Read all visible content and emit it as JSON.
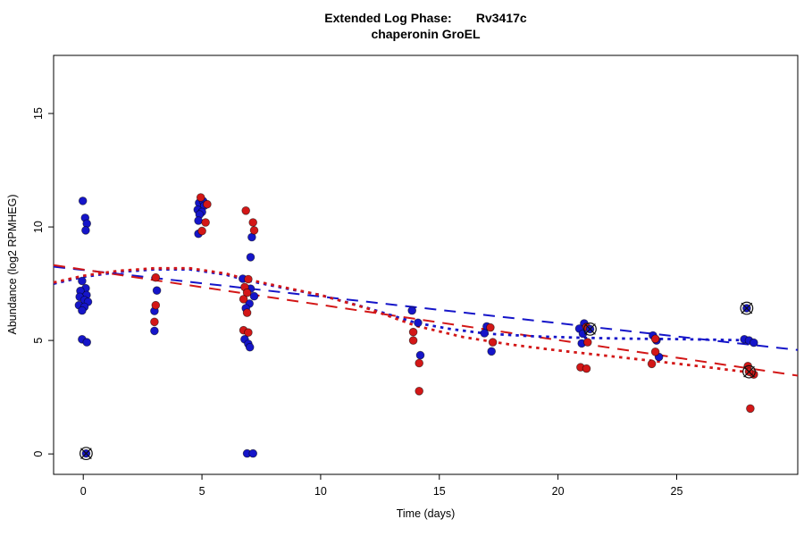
{
  "title": {
    "line1": "Extended Log Phase:       Rv3417c",
    "line2": "chaperonin GroEL"
  },
  "colors": {
    "blue": "#1515c9",
    "red": "#d31717",
    "axis": "#000000",
    "marker_outline": "#111111"
  },
  "chart_data": {
    "type": "scatter",
    "title": "Extended Log Phase: Rv3417c — chaperonin GroEL",
    "xlabel": "Time (days)",
    "ylabel": "Abundance (log2 RPMHEG)",
    "xlim": [
      -1.25,
      30.1
    ],
    "ylim": [
      -0.9,
      17.56
    ],
    "x_ticks": [
      0,
      5,
      10,
      15,
      20,
      25
    ],
    "y_ticks": [
      0,
      5,
      10,
      15
    ],
    "grid": false,
    "legend": "none",
    "series": [
      {
        "name": "blue-condition-points",
        "color_key": "blue",
        "points": [
          [
            -0.02,
            11.15
          ],
          [
            0.08,
            10.4
          ],
          [
            0.15,
            10.15
          ],
          [
            0.1,
            9.85
          ],
          [
            -0.05,
            7.62
          ],
          [
            0.1,
            7.3
          ],
          [
            -0.12,
            7.18
          ],
          [
            0.14,
            7.0
          ],
          [
            -0.15,
            6.92
          ],
          [
            0.05,
            6.78
          ],
          [
            0.2,
            6.7
          ],
          [
            -0.18,
            6.55
          ],
          [
            0.05,
            6.48
          ],
          [
            -0.05,
            6.32
          ],
          [
            -0.05,
            5.05
          ],
          [
            0.15,
            4.92
          ],
          [
            3.1,
            7.2
          ],
          [
            3.0,
            6.3
          ],
          [
            3.0,
            5.42
          ],
          [
            4.88,
            11.06
          ],
          [
            5.05,
            11.14
          ],
          [
            5.1,
            10.94
          ],
          [
            4.82,
            10.76
          ],
          [
            5.0,
            10.66
          ],
          [
            4.9,
            10.55
          ],
          [
            4.85,
            10.28
          ],
          [
            4.85,
            9.7
          ],
          [
            7.1,
            9.55
          ],
          [
            7.05,
            8.67
          ],
          [
            6.72,
            7.72
          ],
          [
            7.05,
            7.28
          ],
          [
            7.2,
            6.95
          ],
          [
            7.0,
            6.62
          ],
          [
            6.85,
            6.42
          ],
          [
            6.8,
            5.05
          ],
          [
            6.95,
            4.85
          ],
          [
            7.02,
            4.7
          ],
          [
            6.9,
            0.02
          ],
          [
            7.15,
            0.02
          ],
          [
            13.85,
            6.32
          ],
          [
            14.1,
            5.78
          ],
          [
            14.2,
            4.35
          ],
          [
            17.0,
            5.62
          ],
          [
            16.9,
            5.32
          ],
          [
            17.2,
            4.52
          ],
          [
            21.1,
            5.75
          ],
          [
            20.9,
            5.52
          ],
          [
            21.05,
            5.3
          ],
          [
            21.0,
            4.87
          ],
          [
            24.0,
            5.22
          ],
          [
            24.15,
            5.0
          ],
          [
            24.25,
            4.27
          ],
          [
            27.85,
            5.05
          ],
          [
            28.05,
            5.0
          ],
          [
            28.25,
            4.9
          ]
        ]
      },
      {
        "name": "red-condition-points",
        "color_key": "red",
        "points": [
          [
            3.05,
            7.77
          ],
          [
            3.05,
            6.55
          ],
          [
            3.0,
            5.82
          ],
          [
            4.95,
            11.3
          ],
          [
            5.22,
            11.0
          ],
          [
            5.15,
            10.2
          ],
          [
            5.0,
            9.82
          ],
          [
            6.85,
            10.72
          ],
          [
            7.15,
            10.2
          ],
          [
            7.2,
            9.85
          ],
          [
            6.95,
            7.7
          ],
          [
            6.8,
            7.35
          ],
          [
            6.9,
            7.1
          ],
          [
            6.75,
            6.82
          ],
          [
            6.9,
            6.22
          ],
          [
            6.75,
            5.45
          ],
          [
            6.95,
            5.35
          ],
          [
            13.9,
            5.37
          ],
          [
            13.9,
            5.0
          ],
          [
            14.15,
            4.0
          ],
          [
            14.15,
            2.77
          ],
          [
            17.15,
            5.57
          ],
          [
            17.25,
            4.92
          ],
          [
            21.2,
            5.6
          ],
          [
            21.25,
            4.92
          ],
          [
            20.95,
            3.82
          ],
          [
            21.2,
            3.76
          ],
          [
            24.1,
            5.07
          ],
          [
            24.1,
            4.5
          ],
          [
            23.95,
            3.97
          ],
          [
            28.0,
            3.87
          ],
          [
            28.25,
            3.5
          ],
          [
            28.1,
            2.0
          ]
        ]
      }
    ],
    "outlier_markers": [
      {
        "x": 0.12,
        "y": 0.02,
        "series": "blue"
      },
      {
        "x": 21.35,
        "y": 5.5,
        "series": "blue"
      },
      {
        "x": 27.95,
        "y": 6.42,
        "series": "blue"
      },
      {
        "x": 28.05,
        "y": 3.62,
        "series": "red"
      }
    ],
    "trend_lines": [
      {
        "name": "blue-linear-fit",
        "style": "dashed",
        "color_key": "blue",
        "points": [
          [
            -1.25,
            8.25
          ],
          [
            30.1,
            4.58
          ]
        ]
      },
      {
        "name": "red-linear-fit",
        "style": "dashed",
        "color_key": "red",
        "points": [
          [
            -1.25,
            8.32
          ],
          [
            30.1,
            3.45
          ]
        ]
      },
      {
        "name": "blue-loess-fit",
        "style": "dotted",
        "color_key": "blue",
        "points": [
          [
            -1.25,
            7.5
          ],
          [
            0,
            7.8
          ],
          [
            1.5,
            8.02
          ],
          [
            3,
            8.13
          ],
          [
            4.5,
            8.13
          ],
          [
            6,
            7.9
          ],
          [
            7,
            7.62
          ],
          [
            8.5,
            7.3
          ],
          [
            10,
            7.0
          ],
          [
            12,
            6.42
          ],
          [
            14,
            5.78
          ],
          [
            15.5,
            5.5
          ],
          [
            17,
            5.3
          ],
          [
            19,
            5.18
          ],
          [
            21,
            5.12
          ],
          [
            23,
            5.08
          ],
          [
            25,
            5.06
          ],
          [
            28.4,
            5.0
          ]
        ]
      },
      {
        "name": "red-loess-fit",
        "style": "dotted",
        "color_key": "red",
        "points": [
          [
            -1.25,
            7.55
          ],
          [
            0,
            7.85
          ],
          [
            1.5,
            8.07
          ],
          [
            3,
            8.18
          ],
          [
            4.5,
            8.18
          ],
          [
            6,
            7.95
          ],
          [
            7,
            7.67
          ],
          [
            8.5,
            7.33
          ],
          [
            10,
            7.0
          ],
          [
            12,
            6.4
          ],
          [
            14,
            5.65
          ],
          [
            16,
            5.15
          ],
          [
            18,
            4.82
          ],
          [
            20,
            4.56
          ],
          [
            22,
            4.33
          ],
          [
            24,
            4.1
          ],
          [
            26,
            3.86
          ],
          [
            28.4,
            3.55
          ]
        ]
      }
    ]
  }
}
